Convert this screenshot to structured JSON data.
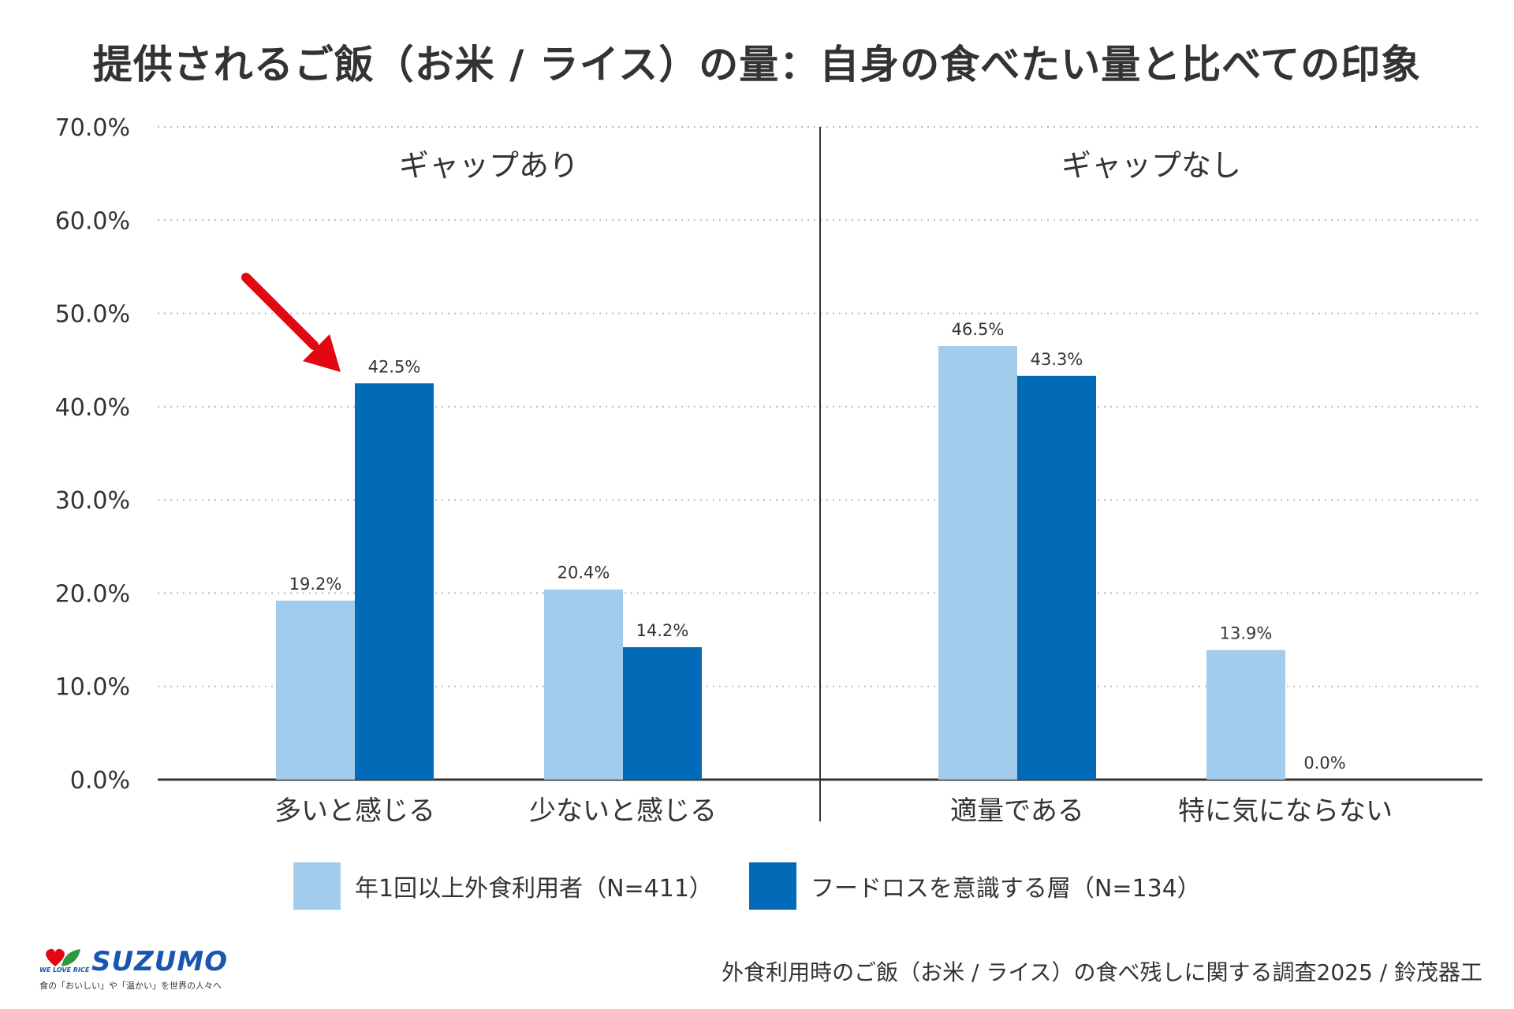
{
  "chart_data": {
    "type": "bar",
    "title": "提供されるご飯（お米 / ライス）の量：自身の食べたい量と比べての印象",
    "categories": [
      "多いと感じる",
      "少ないと感じる",
      "適量である",
      "特に気にならない"
    ],
    "groups": [
      {
        "label": "ギャップあり",
        "categories": [
          "多いと感じる",
          "少ないと感じる"
        ]
      },
      {
        "label": "ギャップなし",
        "categories": [
          "適量である",
          "特に気にならない"
        ]
      }
    ],
    "series": [
      {
        "name": "年1回以上外食利用者（N=411）",
        "color": "#a3cbec",
        "values": [
          19.2,
          20.4,
          46.5,
          13.9
        ]
      },
      {
        "name": "フードロスを意識する層（N=134）",
        "color": "#036ab8",
        "values": [
          42.5,
          14.2,
          43.3,
          0.0
        ]
      }
    ],
    "data_labels": [
      [
        "19.2%",
        "20.4%",
        "46.5%",
        "13.9%"
      ],
      [
        "42.5%",
        "14.2%",
        "43.3%",
        "0.0%"
      ]
    ],
    "yticks": [
      "0.0%",
      "10.0%",
      "20.0%",
      "30.0%",
      "40.0%",
      "50.0%",
      "60.0%",
      "70.0%"
    ],
    "ylim": [
      0,
      70
    ],
    "ytick_step": 10,
    "grid": true,
    "legend_position": "bottom",
    "annotation": {
      "type": "arrow",
      "target": "フードロスを意識する層 / 多いと感じる",
      "color": "#e30613"
    }
  },
  "colors": {
    "axis": "#333333",
    "grid": "#bbbbbb",
    "arrow": "#e30613",
    "brand": "#1a56b0",
    "heart": "#e30613",
    "leaf": "#2a9a3a"
  },
  "footer": {
    "source": "外食利用時のご飯（お米 / ライス）の食べ残しに関する調査2025 / 鈴茂器工"
  },
  "logo": {
    "brand": "SUZUMO",
    "tagline_en": "WE LOVE RICE",
    "tagline_jp": "食の「おいしい」や「温かい」を世界の人々へ"
  }
}
